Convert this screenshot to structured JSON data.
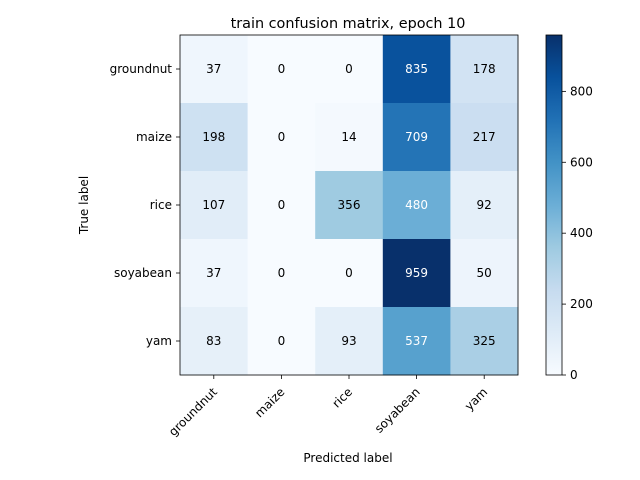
{
  "chart_data": {
    "type": "heatmap",
    "title": "train confusion matrix, epoch 10",
    "xlabel": "Predicted label",
    "ylabel": "True label",
    "x_categories": [
      "groundnut",
      "maize",
      "rice",
      "soyabean",
      "yam"
    ],
    "y_categories": [
      "groundnut",
      "maize",
      "rice",
      "soyabean",
      "yam"
    ],
    "values": [
      [
        37,
        0,
        0,
        835,
        178
      ],
      [
        198,
        0,
        14,
        709,
        217
      ],
      [
        107,
        0,
        356,
        480,
        92
      ],
      [
        37,
        0,
        0,
        959,
        50
      ],
      [
        83,
        0,
        93,
        537,
        325
      ]
    ],
    "colormap": "Blues",
    "vmin": 0,
    "vmax": 959,
    "colorbar_ticks": [
      0,
      200,
      400,
      600,
      800
    ],
    "grid": false
  }
}
